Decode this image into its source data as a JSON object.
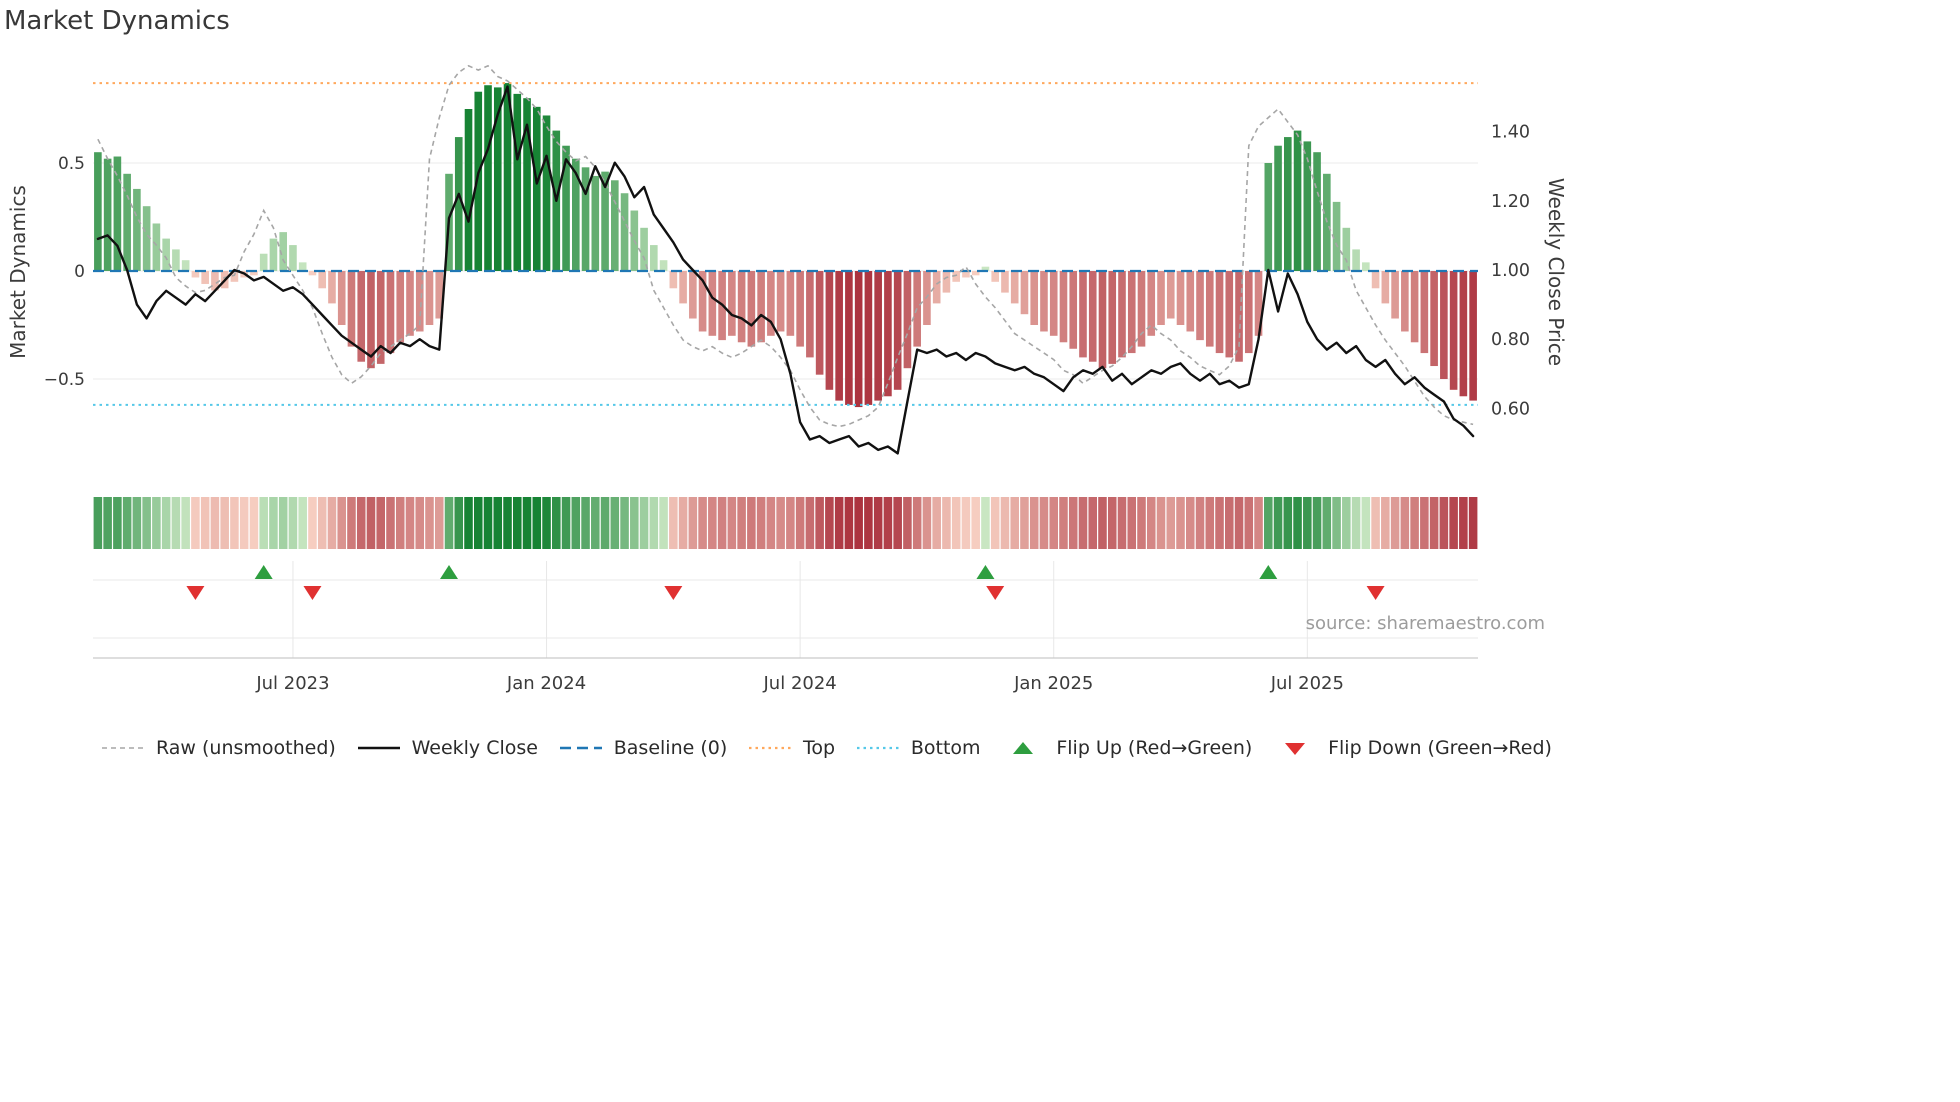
{
  "title": "Market Dynamics",
  "source": "source: sharemaestro.com",
  "axes": {
    "left_label": "Market Dynamics",
    "right_label": "Weekly Close Price",
    "left_ticks": [
      {
        "label": "0.5",
        "value": 0.5
      },
      {
        "label": "0",
        "value": 0
      },
      {
        "label": "−0.5",
        "value": -0.5
      }
    ],
    "right_ticks": [
      {
        "label": "1.40",
        "value": 1.4
      },
      {
        "label": "1.20",
        "value": 1.2
      },
      {
        "label": "1.00",
        "value": 1.0
      },
      {
        "label": "0.80",
        "value": 0.8
      },
      {
        "label": "0.60",
        "value": 0.6
      }
    ],
    "x_ticks": [
      {
        "label": "Jul 2023",
        "index": 20
      },
      {
        "label": "Jan 2024",
        "index": 46
      },
      {
        "label": "Jul 2024",
        "index": 72
      },
      {
        "label": "Jan 2025",
        "index": 98
      },
      {
        "label": "Jul 2025",
        "index": 124
      }
    ]
  },
  "colors": {
    "bar_green_dark": "#178334",
    "bar_green_light": "#cee9c6",
    "bar_red_dark": "#9d1526",
    "bar_red_light": "#f8d2c4",
    "baseline": "#1f77b4",
    "top": "#ffa85c",
    "bottom": "#55c8e8",
    "raw_line": "#a6a6a6",
    "close_line": "#111111",
    "flip_up": "#2e9e3f",
    "flip_down": "#e03131",
    "grid": "#ebebeb",
    "panel_grid": "#e8e8e8",
    "spine": "#c9c9c9",
    "text": "#3c3c3c",
    "muted_text": "#9c9c9c"
  },
  "legend": [
    {
      "label": "Raw (unsmoothed)",
      "marker": "dashed-gray-line"
    },
    {
      "label": "Weekly Close",
      "marker": "solid-black-line"
    },
    {
      "label": "Baseline (0)",
      "marker": "dashed-blue-line"
    },
    {
      "label": "Top",
      "marker": "dotted-orange-line"
    },
    {
      "label": "Bottom",
      "marker": "dotted-cyan-line"
    },
    {
      "label": "Flip Up (Red→Green)",
      "marker": "green-up-triangle"
    },
    {
      "label": "Flip Down (Green→Red)",
      "marker": "red-down-triangle"
    }
  ],
  "chart_data": {
    "type": "combo-bar-line",
    "x_unit": "week",
    "n_points": 142,
    "title": "Market Dynamics",
    "legend_position": "bottom",
    "grid": true,
    "ylim_left": [
      -0.97,
      0.98
    ],
    "ylim_right": [
      0.39,
      1.61
    ],
    "baseline": 0,
    "top_level": 0.87,
    "bottom_level": -0.62,
    "heatmap_source": "oscillator",
    "series": [
      {
        "name": "Market Dynamics (bars)",
        "axis": "left",
        "type": "bar",
        "key": "oscillator"
      },
      {
        "name": "Raw (unsmoothed)",
        "axis": "left",
        "type": "line",
        "key": "raw"
      },
      {
        "name": "Weekly Close",
        "axis": "right",
        "type": "line",
        "key": "weekly_close"
      }
    ],
    "oscillator": [
      0.55,
      0.52,
      0.53,
      0.45,
      0.38,
      0.3,
      0.22,
      0.15,
      0.1,
      0.05,
      -0.03,
      -0.06,
      -0.09,
      -0.08,
      -0.05,
      -0.03,
      -0.02,
      0.08,
      0.15,
      0.18,
      0.12,
      0.04,
      -0.02,
      -0.08,
      -0.15,
      -0.25,
      -0.35,
      -0.42,
      -0.45,
      -0.43,
      -0.38,
      -0.33,
      -0.3,
      -0.28,
      -0.25,
      -0.22,
      0.45,
      0.62,
      0.75,
      0.83,
      0.86,
      0.85,
      0.87,
      0.82,
      0.8,
      0.76,
      0.72,
      0.65,
      0.58,
      0.52,
      0.48,
      0.44,
      0.46,
      0.42,
      0.36,
      0.28,
      0.2,
      0.12,
      0.05,
      -0.08,
      -0.15,
      -0.22,
      -0.28,
      -0.3,
      -0.32,
      -0.3,
      -0.33,
      -0.35,
      -0.33,
      -0.3,
      -0.28,
      -0.3,
      -0.35,
      -0.4,
      -0.48,
      -0.55,
      -0.6,
      -0.62,
      -0.63,
      -0.62,
      -0.6,
      -0.58,
      -0.55,
      -0.45,
      -0.35,
      -0.25,
      -0.15,
      -0.1,
      -0.05,
      -0.03,
      -0.02,
      0.02,
      -0.05,
      -0.1,
      -0.15,
      -0.2,
      -0.25,
      -0.28,
      -0.3,
      -0.33,
      -0.36,
      -0.4,
      -0.42,
      -0.45,
      -0.43,
      -0.4,
      -0.38,
      -0.35,
      -0.3,
      -0.25,
      -0.22,
      -0.25,
      -0.28,
      -0.32,
      -0.35,
      -0.38,
      -0.4,
      -0.42,
      -0.38,
      -0.3,
      0.5,
      0.58,
      0.62,
      0.65,
      0.6,
      0.55,
      0.45,
      0.32,
      0.2,
      0.1,
      0.04,
      -0.08,
      -0.15,
      -0.22,
      -0.28,
      -0.33,
      -0.38,
      -0.44,
      -0.5,
      -0.55,
      -0.58,
      -0.6
    ],
    "raw": [
      0.61,
      0.52,
      0.44,
      0.35,
      0.25,
      0.17,
      0.12,
      0.06,
      -0.03,
      -0.07,
      -0.1,
      -0.09,
      -0.06,
      -0.03,
      -0.02,
      0.09,
      0.17,
      0.28,
      0.2,
      0.05,
      -0.02,
      -0.09,
      -0.17,
      -0.29,
      -0.4,
      -0.48,
      -0.52,
      -0.49,
      -0.44,
      -0.38,
      -0.35,
      -0.32,
      -0.29,
      -0.25,
      0.52,
      0.71,
      0.86,
      0.92,
      0.95,
      0.93,
      0.95,
      0.9,
      0.88,
      0.84,
      0.8,
      0.75,
      0.67,
      0.6,
      0.55,
      0.51,
      0.53,
      0.48,
      0.41,
      0.32,
      0.23,
      0.14,
      0.06,
      -0.09,
      -0.17,
      -0.25,
      -0.32,
      -0.35,
      -0.37,
      -0.35,
      -0.38,
      -0.4,
      -0.38,
      -0.35,
      -0.32,
      -0.35,
      -0.4,
      -0.46,
      -0.55,
      -0.63,
      -0.69,
      -0.71,
      -0.72,
      -0.71,
      -0.69,
      -0.67,
      -0.63,
      -0.52,
      -0.4,
      -0.29,
      -0.17,
      -0.12,
      -0.06,
      -0.03,
      -0.02,
      0.02,
      -0.06,
      -0.12,
      -0.17,
      -0.23,
      -0.29,
      -0.32,
      -0.35,
      -0.38,
      -0.41,
      -0.46,
      -0.48,
      -0.52,
      -0.49,
      -0.46,
      -0.44,
      -0.4,
      -0.35,
      -0.29,
      -0.25,
      -0.29,
      -0.32,
      -0.37,
      -0.4,
      -0.44,
      -0.46,
      -0.48,
      -0.44,
      -0.35,
      0.58,
      0.67,
      0.71,
      0.75,
      0.69,
      0.63,
      0.52,
      0.37,
      0.23,
      0.12,
      0.05,
      -0.09,
      -0.17,
      -0.25,
      -0.32,
      -0.38,
      -0.44,
      -0.51,
      -0.58,
      -0.63,
      -0.67,
      -0.69,
      -0.7,
      -0.71
    ],
    "weekly_close": [
      1.09,
      1.1,
      1.07,
      1.0,
      0.9,
      0.86,
      0.91,
      0.94,
      0.92,
      0.9,
      0.93,
      0.91,
      0.94,
      0.97,
      1.0,
      0.99,
      0.97,
      0.98,
      0.96,
      0.94,
      0.95,
      0.93,
      0.9,
      0.87,
      0.84,
      0.81,
      0.79,
      0.77,
      0.75,
      0.78,
      0.76,
      0.79,
      0.78,
      0.8,
      0.78,
      0.77,
      1.15,
      1.22,
      1.14,
      1.28,
      1.35,
      1.45,
      1.53,
      1.32,
      1.42,
      1.25,
      1.33,
      1.2,
      1.32,
      1.28,
      1.22,
      1.3,
      1.24,
      1.31,
      1.27,
      1.21,
      1.24,
      1.16,
      1.12,
      1.08,
      1.03,
      1.0,
      0.97,
      0.92,
      0.9,
      0.87,
      0.86,
      0.84,
      0.87,
      0.85,
      0.8,
      0.7,
      0.56,
      0.51,
      0.52,
      0.5,
      0.51,
      0.52,
      0.49,
      0.5,
      0.48,
      0.49,
      0.47,
      0.62,
      0.77,
      0.76,
      0.77,
      0.75,
      0.76,
      0.74,
      0.76,
      0.75,
      0.73,
      0.72,
      0.71,
      0.72,
      0.7,
      0.69,
      0.67,
      0.65,
      0.69,
      0.71,
      0.7,
      0.72,
      0.68,
      0.7,
      0.67,
      0.69,
      0.71,
      0.7,
      0.72,
      0.73,
      0.7,
      0.68,
      0.7,
      0.67,
      0.68,
      0.66,
      0.67,
      0.8,
      1.0,
      0.88,
      0.99,
      0.93,
      0.85,
      0.8,
      0.77,
      0.79,
      0.76,
      0.78,
      0.74,
      0.72,
      0.74,
      0.7,
      0.67,
      0.69,
      0.66,
      0.64,
      0.62,
      0.57,
      0.55,
      0.52
    ],
    "flip_up_indices": [
      17,
      36,
      91,
      120
    ],
    "flip_down_indices": [
      10,
      22,
      59,
      92,
      131
    ]
  }
}
